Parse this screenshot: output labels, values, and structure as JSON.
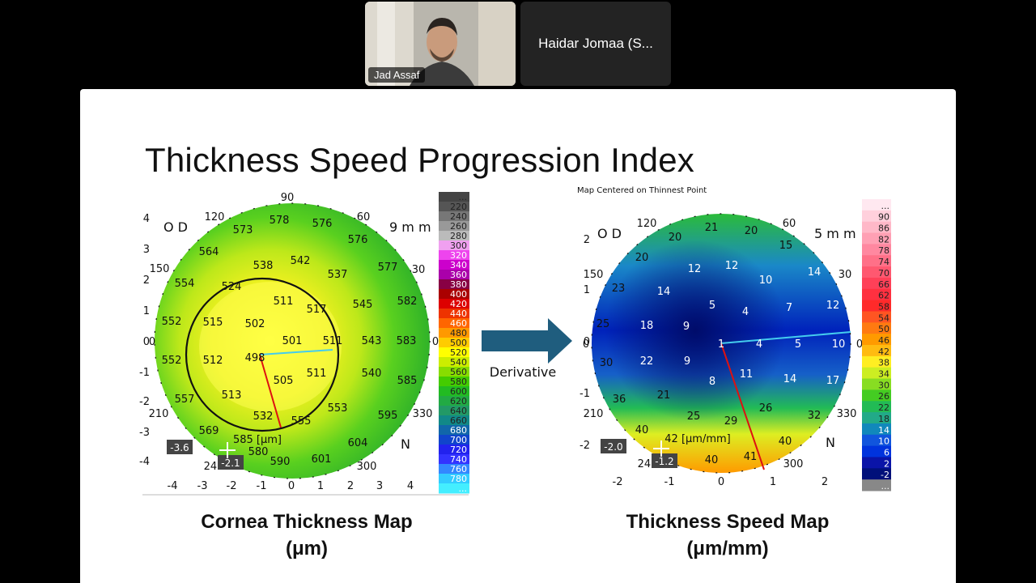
{
  "meeting": {
    "participants": [
      {
        "name": "Jad Assaf"
      },
      {
        "name": "Haidar Jomaa (S..."
      }
    ]
  },
  "slide": {
    "title": "Thickness Speed Progression Index",
    "arrow_label": "Derivative",
    "left_caption_line1": "Cornea Thickness Map",
    "left_caption_line2": "(μm)",
    "right_caption_line1": "Thickness Speed Map",
    "right_caption_line2": "(μm/mm)"
  },
  "left_map": {
    "eye": "O D",
    "diameter": "9 m m",
    "axis_labels": {
      "top": "90",
      "tl": "120",
      "tr": "60",
      "l1": "150",
      "r1": "30",
      "l0": "0",
      "r0": "0",
      "l2": "210",
      "r2": "330",
      "bl": "240",
      "br": "300",
      "nasal": "N"
    },
    "y_ticks": [
      "4",
      "3",
      "2",
      "1",
      "0",
      "-1",
      "-2",
      "-3",
      "-4"
    ],
    "x_ticks": [
      "-4",
      "-3",
      "-2",
      "-1",
      "0",
      "1",
      "2",
      "3",
      "4"
    ],
    "values": [
      "578",
      "576",
      "573",
      "576",
      "564",
      "538",
      "542",
      "537",
      "577",
      "554",
      "524",
      "511",
      "517",
      "545",
      "582",
      "552",
      "515",
      "502",
      "501",
      "511",
      "543",
      "583",
      "552",
      "512",
      "498",
      "505",
      "511",
      "540",
      "585",
      "557",
      "513",
      "532",
      "555",
      "553",
      "595",
      "569",
      "585 [μm]",
      "604",
      "580",
      "590",
      "601"
    ],
    "corner_box": "-3.6",
    "pointer_box": "-2.1",
    "legend": [
      "...",
      "220",
      "240",
      "260",
      "280",
      "300",
      "320",
      "340",
      "360",
      "380",
      "400",
      "420",
      "440",
      "460",
      "480",
      "500",
      "520",
      "540",
      "560",
      "580",
      "600",
      "620",
      "640",
      "660",
      "680",
      "700",
      "720",
      "740",
      "760",
      "780",
      "..."
    ],
    "legend_colors": [
      "#444444",
      "#555555",
      "#777777",
      "#999999",
      "#bbbbbb",
      "#f0a0f0",
      "#ee44ee",
      "#cc00cc",
      "#aa00aa",
      "#880044",
      "#aa0000",
      "#dd0000",
      "#ee3300",
      "#ff6600",
      "#ff9900",
      "#ffcc00",
      "#ffff00",
      "#ccee00",
      "#88dd00",
      "#44cc00",
      "#22bb22",
      "#22aa44",
      "#229966",
      "#118888",
      "#1166aa",
      "#1144cc",
      "#2222ee",
      "#3333ff",
      "#3388ff",
      "#33ccff",
      "#44eeff"
    ]
  },
  "right_map": {
    "header": "Map Centered on Thinnest Point",
    "eye": "O D",
    "diameter": "5 m m",
    "axis_labels": {
      "tl": "120",
      "tr": "60",
      "l1": "150",
      "r1": "30",
      "l0": "0",
      "r0": "0",
      "l2": "210",
      "r2": "330",
      "bl": "240",
      "br": "300",
      "nasal": "N"
    },
    "y_ticks": [
      "2",
      "1",
      "0",
      "-1",
      "-2"
    ],
    "x_ticks": [
      "-2",
      "-1",
      "0",
      "1",
      "2"
    ],
    "values": [
      "21",
      "20",
      "20",
      "15",
      "20",
      "12",
      "12",
      "10",
      "14",
      "23",
      "14",
      "5",
      "4",
      "7",
      "12",
      "25",
      "18",
      "9",
      "1",
      "4",
      "5",
      "10",
      "30",
      "22",
      "9",
      "8",
      "11",
      "14",
      "17",
      "36",
      "21",
      "26",
      "25",
      "29",
      "32",
      "40",
      "42 [μm/mm]",
      "40",
      "40",
      "41"
    ],
    "corner_box": "-2.0",
    "pointer_box": "-1.2",
    "legend": [
      "...",
      "90",
      "86",
      "82",
      "78",
      "74",
      "70",
      "66",
      "62",
      "58",
      "54",
      "50",
      "46",
      "42",
      "38",
      "34",
      "30",
      "26",
      "22",
      "18",
      "14",
      "10",
      "6",
      "2",
      "-2",
      "..."
    ],
    "legend_colors": [
      "#ffe8f0",
      "#ffd0dc",
      "#ffb8c8",
      "#ffa0b4",
      "#ff88a0",
      "#ff7088",
      "#ff5870",
      "#ff4058",
      "#ff3040",
      "#ff2a2a",
      "#ff5522",
      "#ff7a11",
      "#ff9a00",
      "#ffbb11",
      "#ffee22",
      "#ccee22",
      "#88dd22",
      "#44cc22",
      "#22bb55",
      "#22aa88",
      "#1188bb",
      "#1155dd",
      "#0033dd",
      "#0a14a8",
      "#00107a"
    ]
  }
}
